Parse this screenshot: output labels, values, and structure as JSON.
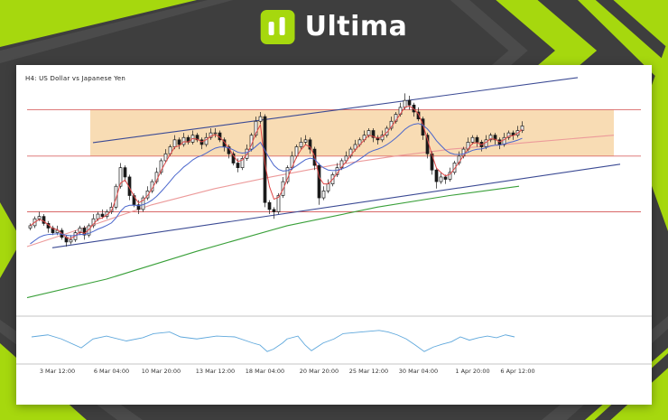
{
  "brand": {
    "name": "Ultima"
  },
  "colors": {
    "background": "#3e3e3e",
    "accent_green": "#a6d80e",
    "decor_gray": "#4b4b4b",
    "card": "#ffffff",
    "zone": "#f8dcb4",
    "hline": "#d96868",
    "trendline": "#3b4a94",
    "ma_fast": "#e04848",
    "ma_medium": "#4a66cc",
    "ma_slow_green": "#3aa03a",
    "ma_long_pink": "#ec9a9a",
    "oscillator": "#5fa8dc",
    "candle_up": "#ffffff",
    "candle_down": "#1a1a1a",
    "candle_stroke": "#1a1a1a",
    "axis_text": "#333333",
    "separator": "#8a8a8a"
  },
  "chart": {
    "instrument_label": "H4:  US Dollar vs Japanese Yen"
  },
  "chart_data": {
    "type": "candlestick",
    "title": "US Dollar vs Japanese Yen",
    "timeframe": "H4",
    "xlabel": "",
    "ylabel": "",
    "ylim": [
      0,
      100
    ],
    "grid": false,
    "legend": "none",
    "x_ticks": [
      {
        "index": 6,
        "label": "3 Mar 12:00"
      },
      {
        "index": 18,
        "label": "6 Mar 04:00"
      },
      {
        "index": 29,
        "label": "10 Mar 20:00"
      },
      {
        "index": 41,
        "label": "13 Mar 12:00"
      },
      {
        "index": 52,
        "label": "18 Mar 04:00"
      },
      {
        "index": 64,
        "label": "20 Mar 20:00"
      },
      {
        "index": 75,
        "label": "25 Mar 12:00"
      },
      {
        "index": 86,
        "label": "30 Mar 04:00"
      },
      {
        "index": 98,
        "label": "1 Apr 20:00"
      },
      {
        "index": 108,
        "label": "6 Apr 12:00"
      }
    ],
    "zones": [
      {
        "name": "supply-zone",
        "i_start": 13.3,
        "i_end": 129.3,
        "top": 87,
        "bottom": 67
      }
    ],
    "hlines": [
      87,
      67,
      43
    ],
    "trendlines": [
      {
        "name": "upper-channel-trendline",
        "points": [
          [
            13.9,
            72.8
          ],
          [
            121.3,
            100.8
          ]
        ]
      },
      {
        "name": "lower-support-trendline",
        "points": [
          [
            4.9,
            27.5
          ],
          [
            130.7,
            63.5
          ]
        ]
      }
    ],
    "overlay_lines": [
      {
        "name": "ma-long-pink",
        "color_key": "ma_long_pink",
        "points": [
          [
            -0.7,
            28
          ],
          [
            14.9,
            38
          ],
          [
            26.9,
            46
          ],
          [
            40.9,
            53
          ],
          [
            53.3,
            58
          ],
          [
            66.9,
            63
          ],
          [
            80.9,
            67
          ],
          [
            93.3,
            70
          ],
          [
            110.9,
            73
          ],
          [
            129.3,
            76
          ]
        ]
      },
      {
        "name": "ma-slow-green",
        "color_key": "ma_slow_green",
        "points": [
          [
            -0.7,
            6
          ],
          [
            16.9,
            14
          ],
          [
            36.9,
            26
          ],
          [
            56.9,
            37
          ],
          [
            76.9,
            45
          ],
          [
            92.9,
            50
          ],
          [
            108.3,
            54
          ]
        ]
      }
    ],
    "moving_averages": [
      {
        "name": "ma-fast-red",
        "color_key": "ma_fast",
        "type": "ema",
        "period": 3,
        "seed": 37
      },
      {
        "name": "ma-medium-blue",
        "color_key": "ma_medium",
        "type": "ema",
        "period": 14,
        "seed": 28
      }
    ],
    "candles": [
      [
        36,
        38,
        35,
        37
      ],
      [
        37,
        41,
        36,
        40
      ],
      [
        40,
        43,
        39,
        41
      ],
      [
        41,
        42,
        37,
        38
      ],
      [
        38,
        39,
        34,
        36
      ],
      [
        36,
        37,
        33,
        34
      ],
      [
        34,
        37,
        33,
        35
      ],
      [
        35,
        36,
        31,
        32
      ],
      [
        32,
        33,
        28,
        30
      ],
      [
        30,
        33,
        29,
        31
      ],
      [
        31,
        35,
        30,
        34
      ],
      [
        34,
        37,
        33,
        36
      ],
      [
        36,
        37,
        31,
        33
      ],
      [
        33,
        38,
        32,
        37
      ],
      [
        37,
        42,
        36,
        40
      ],
      [
        40,
        43,
        39,
        42
      ],
      [
        42,
        44,
        40,
        41
      ],
      [
        41,
        44,
        40,
        43
      ],
      [
        43,
        47,
        42,
        45
      ],
      [
        45,
        55,
        44,
        54
      ],
      [
        54,
        64,
        53,
        62
      ],
      [
        62,
        63,
        56,
        58
      ],
      [
        58,
        59,
        48,
        50
      ],
      [
        50,
        51,
        45,
        46
      ],
      [
        46,
        48,
        42,
        44
      ],
      [
        44,
        50,
        43,
        49
      ],
      [
        49,
        54,
        48,
        52
      ],
      [
        52,
        57,
        51,
        56
      ],
      [
        56,
        62,
        55,
        60
      ],
      [
        60,
        66,
        59,
        65
      ],
      [
        65,
        70,
        64,
        68
      ],
      [
        68,
        72,
        67,
        71
      ],
      [
        71,
        76,
        70,
        74
      ],
      [
        74,
        75,
        70,
        72
      ],
      [
        72,
        77,
        71,
        75
      ],
      [
        75,
        76,
        72,
        73
      ],
      [
        73,
        78,
        72,
        76
      ],
      [
        76,
        77,
        73,
        74
      ],
      [
        74,
        75,
        70,
        72
      ],
      [
        72,
        77,
        71,
        75
      ],
      [
        75,
        79,
        74,
        77
      ],
      [
        77,
        79,
        75,
        77
      ],
      [
        77,
        78,
        73,
        74
      ],
      [
        74,
        75,
        69,
        71
      ],
      [
        71,
        72,
        66,
        68
      ],
      [
        68,
        69,
        63,
        64
      ],
      [
        64,
        66,
        60,
        62
      ],
      [
        62,
        67,
        61,
        66
      ],
      [
        66,
        72,
        65,
        70
      ],
      [
        70,
        77,
        69,
        76
      ],
      [
        76,
        84,
        75,
        82
      ],
      [
        82,
        86,
        81,
        84
      ],
      [
        84,
        85,
        45,
        47
      ],
      [
        47,
        48,
        42,
        44
      ],
      [
        44,
        45,
        40,
        43
      ],
      [
        43,
        51,
        42,
        50
      ],
      [
        50,
        58,
        49,
        56
      ],
      [
        56,
        63,
        55,
        62
      ],
      [
        62,
        69,
        61,
        67
      ],
      [
        67,
        72,
        66,
        71
      ],
      [
        71,
        75,
        70,
        73
      ],
      [
        73,
        76,
        72,
        74
      ],
      [
        74,
        75,
        68,
        70
      ],
      [
        70,
        71,
        61,
        63
      ],
      [
        63,
        64,
        46,
        49
      ],
      [
        49,
        54,
        48,
        52
      ],
      [
        52,
        57,
        51,
        55
      ],
      [
        55,
        60,
        54,
        59
      ],
      [
        59,
        64,
        58,
        62
      ],
      [
        62,
        66,
        61,
        65
      ],
      [
        65,
        69,
        64,
        67
      ],
      [
        67,
        71,
        66,
        70
      ],
      [
        70,
        74,
        69,
        72
      ],
      [
        72,
        75,
        71,
        74
      ],
      [
        74,
        78,
        73,
        76
      ],
      [
        76,
        79,
        75,
        78
      ],
      [
        78,
        79,
        73,
        75
      ],
      [
        75,
        76,
        72,
        74
      ],
      [
        74,
        78,
        73,
        76
      ],
      [
        76,
        80,
        75,
        79
      ],
      [
        79,
        84,
        78,
        82
      ],
      [
        82,
        86,
        81,
        85
      ],
      [
        85,
        90,
        84,
        88
      ],
      [
        88,
        94,
        87,
        91
      ],
      [
        91,
        93,
        87,
        89
      ],
      [
        89,
        90,
        84,
        86
      ],
      [
        86,
        88,
        82,
        83
      ],
      [
        83,
        84,
        74,
        76
      ],
      [
        76,
        77,
        66,
        68
      ],
      [
        68,
        69,
        59,
        61
      ],
      [
        61,
        62,
        53,
        56
      ],
      [
        56,
        60,
        55,
        58
      ],
      [
        58,
        59,
        55,
        57
      ],
      [
        57,
        62,
        56,
        60
      ],
      [
        60,
        65,
        59,
        64
      ],
      [
        64,
        69,
        63,
        67
      ],
      [
        67,
        71,
        66,
        70
      ],
      [
        70,
        75,
        69,
        73
      ],
      [
        73,
        76,
        72,
        75
      ],
      [
        75,
        76,
        71,
        73
      ],
      [
        73,
        74,
        69,
        71
      ],
      [
        71,
        76,
        70,
        74
      ],
      [
        74,
        77,
        73,
        76
      ],
      [
        76,
        77,
        72,
        74
      ],
      [
        74,
        75,
        70,
        72
      ],
      [
        72,
        77,
        71,
        75
      ],
      [
        75,
        78,
        74,
        77
      ],
      [
        77,
        78,
        74,
        76
      ],
      [
        76,
        80,
        75,
        78
      ],
      [
        78,
        82,
        77,
        80
      ]
    ],
    "oscillator": {
      "name": "momentum-oscillator",
      "color_key": "oscillator",
      "ylim": [
        0,
        100
      ],
      "points": [
        [
          0.3,
          60
        ],
        [
          3.9,
          65
        ],
        [
          6.9,
          55
        ],
        [
          11.3,
          33
        ],
        [
          13.9,
          55
        ],
        [
          16.9,
          62
        ],
        [
          21.3,
          50
        ],
        [
          24.9,
          58
        ],
        [
          27.3,
          68
        ],
        [
          30.9,
          72
        ],
        [
          33.3,
          60
        ],
        [
          36.9,
          55
        ],
        [
          41.3,
          62
        ],
        [
          45.3,
          60
        ],
        [
          49.3,
          45
        ],
        [
          50.9,
          40
        ],
        [
          52.5,
          24
        ],
        [
          53.9,
          30
        ],
        [
          55.9,
          45
        ],
        [
          56.9,
          55
        ],
        [
          59.3,
          62
        ],
        [
          60.9,
          40
        ],
        [
          62.3,
          26
        ],
        [
          64.9,
          45
        ],
        [
          67.3,
          55
        ],
        [
          69.3,
          68
        ],
        [
          73.3,
          72
        ],
        [
          77.3,
          76
        ],
        [
          79.3,
          72
        ],
        [
          81.3,
          65
        ],
        [
          83.3,
          55
        ],
        [
          85.3,
          40
        ],
        [
          87.3,
          24
        ],
        [
          89.3,
          35
        ],
        [
          91.3,
          42
        ],
        [
          93.3,
          48
        ],
        [
          95.3,
          60
        ],
        [
          97.3,
          52
        ],
        [
          99.3,
          58
        ],
        [
          101.3,
          62
        ],
        [
          103.3,
          58
        ],
        [
          105.3,
          65
        ],
        [
          107.3,
          60
        ]
      ]
    }
  }
}
